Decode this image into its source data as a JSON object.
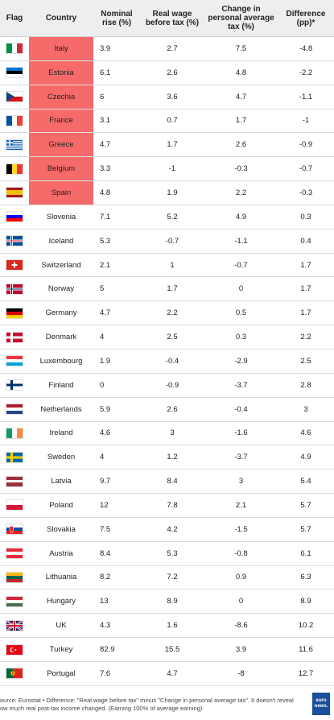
{
  "chart_data": {
    "type": "table",
    "columns": [
      "Flag",
      "Country",
      "Nominal rise (%)",
      "Real wage before tax (%)",
      "Change in personal average tax (%)",
      "Difference (pp)*"
    ],
    "rows": [
      {
        "country": "Italy",
        "nominal": "3.9",
        "real": "2.7",
        "tax": "7.5",
        "diff": "-4.8",
        "highlight": true,
        "flag": "italy-flag"
      },
      {
        "country": "Estonia",
        "nominal": "6.1",
        "real": "2.6",
        "tax": "4.8",
        "diff": "-2.2",
        "highlight": true,
        "flag": "estonia-flag"
      },
      {
        "country": "Czechia",
        "nominal": "6",
        "real": "3.6",
        "tax": "4.7",
        "diff": "-1.1",
        "highlight": true,
        "flag": "czechia-flag"
      },
      {
        "country": "France",
        "nominal": "3.1",
        "real": "0.7",
        "tax": "1.7",
        "diff": "-1",
        "highlight": true,
        "flag": "france-flag"
      },
      {
        "country": "Greece",
        "nominal": "4.7",
        "real": "1.7",
        "tax": "2.6",
        "diff": "-0.9",
        "highlight": true,
        "flag": "greece-flag"
      },
      {
        "country": "Belgium",
        "nominal": "3.3",
        "real": "-1",
        "tax": "-0.3",
        "diff": "-0.7",
        "highlight": true,
        "flag": "belgium-flag"
      },
      {
        "country": "Spain",
        "nominal": "4.8",
        "real": "1.9",
        "tax": "2.2",
        "diff": "-0.3",
        "highlight": true,
        "flag": "spain-flag"
      },
      {
        "country": "Slovenia",
        "nominal": "7.1",
        "real": "5.2",
        "tax": "4.9",
        "diff": "0.3",
        "highlight": false,
        "flag": "slovenia-flag"
      },
      {
        "country": "Iceland",
        "nominal": "5.3",
        "real": "-0.7",
        "tax": "-1.1",
        "diff": "0.4",
        "highlight": false,
        "flag": "iceland-flag"
      },
      {
        "country": "Switzerland",
        "nominal": "2.1",
        "real": "1",
        "tax": "-0.7",
        "diff": "1.7",
        "highlight": false,
        "flag": "switzerland-flag"
      },
      {
        "country": "Norway",
        "nominal": "5",
        "real": "1.7",
        "tax": "0",
        "diff": "1.7",
        "highlight": false,
        "flag": "norway-flag"
      },
      {
        "country": "Germany",
        "nominal": "4.7",
        "real": "2.2",
        "tax": "0.5",
        "diff": "1.7",
        "highlight": false,
        "flag": "germany-flag"
      },
      {
        "country": "Denmark",
        "nominal": "4",
        "real": "2.5",
        "tax": "0.3",
        "diff": "2.2",
        "highlight": false,
        "flag": "denmark-flag"
      },
      {
        "country": "Luxembourg",
        "nominal": "1.9",
        "real": "-0.4",
        "tax": "-2.9",
        "diff": "2.5",
        "highlight": false,
        "flag": "luxembourg-flag"
      },
      {
        "country": "Finland",
        "nominal": "0",
        "real": "-0.9",
        "tax": "-3.7",
        "diff": "2.8",
        "highlight": false,
        "flag": "finland-flag"
      },
      {
        "country": "Netherlands",
        "nominal": "5.9",
        "real": "2.6",
        "tax": "-0.4",
        "diff": "3",
        "highlight": false,
        "flag": "netherlands-flag"
      },
      {
        "country": "Ireland",
        "nominal": "4.6",
        "real": "3",
        "tax": "-1.6",
        "diff": "4.6",
        "highlight": false,
        "flag": "ireland-flag"
      },
      {
        "country": "Sweden",
        "nominal": "4",
        "real": "1.2",
        "tax": "-3.7",
        "diff": "4.9",
        "highlight": false,
        "flag": "sweden-flag"
      },
      {
        "country": "Latvia",
        "nominal": "9.7",
        "real": "8.4",
        "tax": "3",
        "diff": "5.4",
        "highlight": false,
        "flag": "latvia-flag"
      },
      {
        "country": "Poland",
        "nominal": "12",
        "real": "7.8",
        "tax": "2.1",
        "diff": "5.7",
        "highlight": false,
        "flag": "poland-flag"
      },
      {
        "country": "Slovakia",
        "nominal": "7.5",
        "real": "4.2",
        "tax": "-1.5",
        "diff": "5.7",
        "highlight": false,
        "flag": "slovakia-flag"
      },
      {
        "country": "Austria",
        "nominal": "8.4",
        "real": "5.3",
        "tax": "-0.8",
        "diff": "6.1",
        "highlight": false,
        "flag": "austria-flag"
      },
      {
        "country": "Lithuania",
        "nominal": "8.2",
        "real": "7.2",
        "tax": "0.9",
        "diff": "6.3",
        "highlight": false,
        "flag": "lithuania-flag"
      },
      {
        "country": "Hungary",
        "nominal": "13",
        "real": "8.9",
        "tax": "0",
        "diff": "8.9",
        "highlight": false,
        "flag": "hungary-flag"
      },
      {
        "country": "UK",
        "nominal": "4.3",
        "real": "1.6",
        "tax": "-8.6",
        "diff": "10.2",
        "highlight": false,
        "flag": "uk-flag"
      },
      {
        "country": "Turkey",
        "nominal": "82.9",
        "real": "15.5",
        "tax": "3.9",
        "diff": "11.6",
        "highlight": false,
        "flag": "turkey-flag"
      },
      {
        "country": "Portugal",
        "nominal": "7.6",
        "real": "4.7",
        "tax": "-8",
        "diff": "12.7",
        "highlight": false,
        "flag": "portugal-flag"
      }
    ],
    "highlight_color": "#f66a6a"
  },
  "footer": {
    "source_line1": "ource: Eurostat • Difference: \"Real wage before tax\" minus \"Change in personal average tax\". It doesn't reveal",
    "source_line2": "ow much real post-tax income changed. (Earning 100% of average earning)",
    "logo_text": "euro news."
  }
}
